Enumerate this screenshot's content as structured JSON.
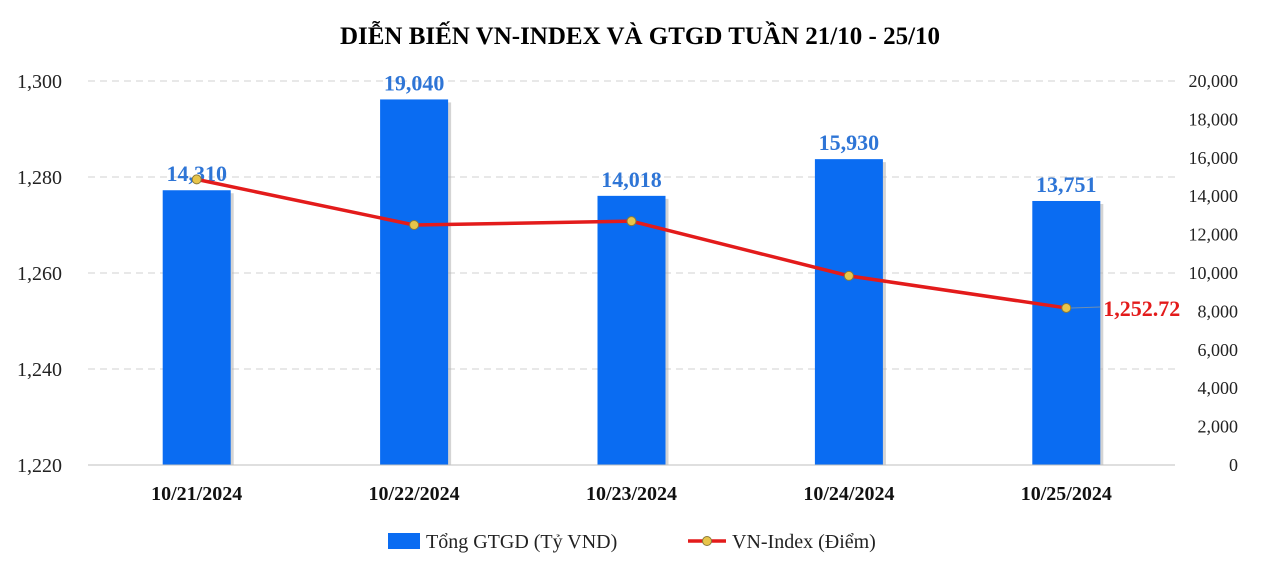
{
  "chart_data": {
    "type": "bar",
    "title": "DIỄN BIẾN VN-INDEX VÀ GTGD TUẦN 21/10 -  25/10",
    "categories": [
      "10/21/2024",
      "10/22/2024",
      "10/23/2024",
      "10/24/2024",
      "10/25/2024"
    ],
    "series": [
      {
        "name": "Tổng GTGD (Tỷ VND)",
        "type": "bar",
        "axis": "right",
        "values": [
          14310,
          19040,
          14018,
          15930,
          13751
        ],
        "labels": [
          "14,310",
          "19,040",
          "14,018",
          "15,930",
          "13,751"
        ],
        "color": "#0a6cf2"
      },
      {
        "name": "VN-Index (Điểm)",
        "type": "line",
        "axis": "left",
        "values": [
          1279.5,
          1270.0,
          1270.8,
          1259.4,
          1252.72
        ],
        "last_label": "1,252.72",
        "color": "#e31b1b",
        "marker_color": "#e8c54a"
      }
    ],
    "y_left": {
      "ylim": [
        1220,
        1300
      ],
      "ticks": [
        1220,
        1240,
        1260,
        1280,
        1300
      ],
      "tick_labels": [
        "1,220",
        "1,240",
        "1,260",
        "1,280",
        "1,300"
      ]
    },
    "y_right": {
      "ylim": [
        0,
        20000
      ],
      "ticks": [
        0,
        2000,
        4000,
        6000,
        8000,
        10000,
        12000,
        14000,
        16000,
        18000,
        20000
      ],
      "tick_labels": [
        "0",
        "2,000",
        "4,000",
        "6,000",
        "8,000",
        "10,000",
        "12,000",
        "14,000",
        "16,000",
        "18,000",
        "20,000"
      ]
    },
    "grid": true,
    "legend_position": "bottom"
  }
}
